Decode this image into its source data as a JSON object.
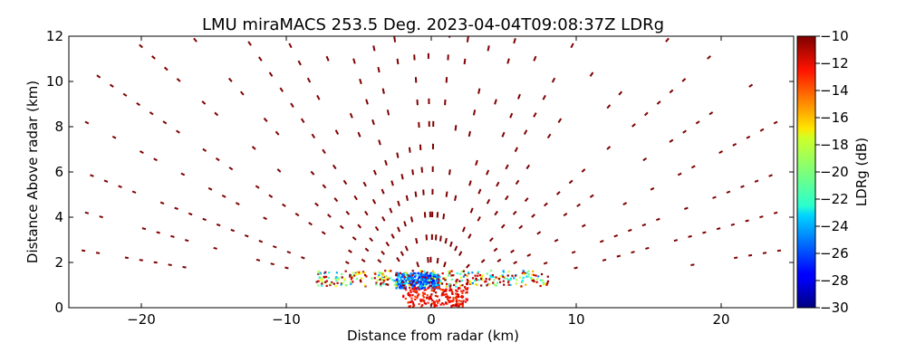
{
  "chart_data": {
    "type": "heatmap",
    "title": "LMU miraMACS 253.5 Deg. 2023-04-04T09:08:37Z  LDRg",
    "xlabel": "Distance from radar (km)",
    "ylabel": "Distance Above radar  (km)",
    "xlim": [
      -25,
      25
    ],
    "ylim": [
      0,
      12
    ],
    "x_ticks": [
      -20,
      -10,
      0,
      10,
      20
    ],
    "x_tick_labels": [
      "−20",
      "−10",
      "0",
      "10",
      "20"
    ],
    "y_ticks": [
      0,
      2,
      4,
      6,
      8,
      10,
      12
    ],
    "y_tick_labels": [
      "0",
      "2",
      "4",
      "6",
      "8",
      "10",
      "12"
    ],
    "colorbar": {
      "label": "LDRg (dB)",
      "min": -30,
      "max": -10,
      "ticks": [
        -10,
        -12,
        -14,
        -16,
        -18,
        -20,
        -22,
        -24,
        -26,
        -28,
        -30
      ],
      "tick_labels": [
        "−10",
        "−12",
        "−14",
        "−16",
        "−18",
        "−20",
        "−22",
        "−24",
        "−26",
        "−28",
        "−30"
      ],
      "colormap": "jet"
    },
    "grid": false,
    "sparse_value_dB": -10,
    "elevation_angles_deg": [
      6,
      10,
      14,
      19,
      24,
      30,
      36,
      43,
      50,
      57,
      64,
      71,
      78,
      84,
      89
    ],
    "range_gates_km": [
      2,
      3,
      4,
      5,
      6,
      7,
      8,
      9,
      10,
      11,
      12,
      13,
      14,
      15,
      16,
      17,
      18,
      19,
      20,
      21,
      22,
      23,
      24,
      25
    ],
    "near_surface_cluster": {
      "x_range_km": [
        -8,
        8
      ],
      "z_range_km": [
        0,
        1.6
      ],
      "low_ldr_core_x_km": [
        -2.5,
        0.5
      ],
      "low_ldr_core_z_km": [
        0.8,
        1.5
      ],
      "core_ldr_dB": -28
    }
  }
}
